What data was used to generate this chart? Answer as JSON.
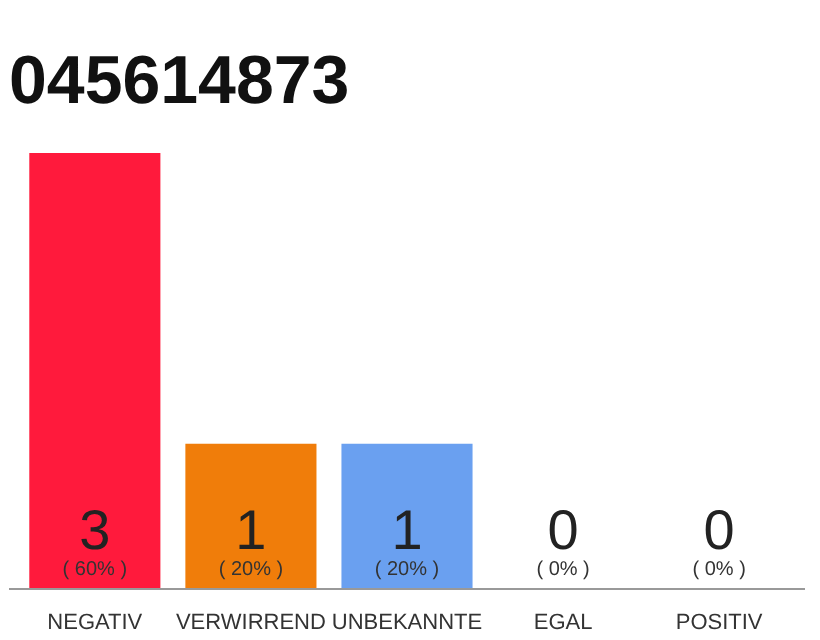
{
  "chart_data": {
    "type": "bar",
    "title": "045614873",
    "categories": [
      "NEGATIV",
      "VERWIRREND",
      "UNBEKANNTE",
      "EGAL",
      "POSITIV"
    ],
    "values": [
      3,
      1,
      1,
      0,
      0
    ],
    "colors": [
      "#ff1a3c",
      "#f07d0a",
      "#6aa0f0",
      "#eeeeee",
      "#eeeeee"
    ],
    "data_labels": true,
    "annotations": [
      "( 60% )",
      "( 20% )",
      "( 20% )",
      "( 0% )",
      "( 0% )"
    ],
    "grid": false
  }
}
